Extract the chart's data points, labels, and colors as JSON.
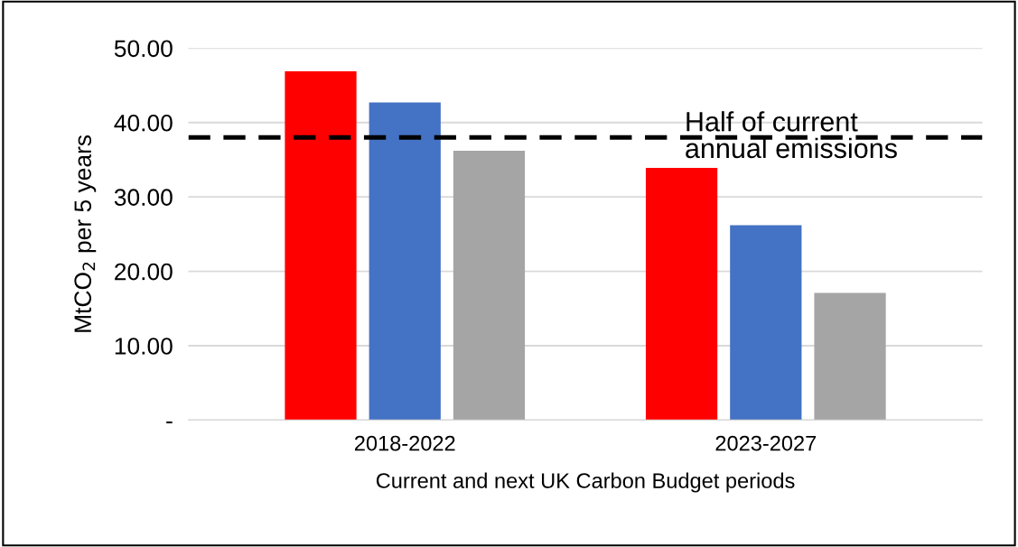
{
  "chart_data": {
    "type": "bar",
    "xlabel": "Current and next UK Carbon Budget periods",
    "ylabel": "MtCO$_{2}$ per 5 years",
    "categories": [
      "2018-2022",
      "2023-2027"
    ],
    "series": [
      {
        "color": "#ff0000",
        "values": [
          46.9,
          33.9
        ]
      },
      {
        "color": "#4472c4",
        "values": [
          42.7,
          26.2
        ]
      },
      {
        "color": "#a5a5a5",
        "values": [
          36.2,
          17.1
        ]
      }
    ],
    "ylim": [
      0,
      50
    ],
    "yticks": [
      {
        "value": 0,
        "label": "-"
      },
      {
        "value": 10,
        "label": "10.00"
      },
      {
        "value": 20,
        "label": "20.00"
      },
      {
        "value": 30,
        "label": "30.00"
      },
      {
        "value": 40,
        "label": "40.00"
      },
      {
        "value": 50,
        "label": "50.00"
      }
    ],
    "grid": "y",
    "legend": false,
    "ref_lines": [
      {
        "axis": "y",
        "value": 38,
        "label": "Half of current\nannual emissions",
        "color": "#000000",
        "line_style": "dashed"
      }
    ]
  }
}
